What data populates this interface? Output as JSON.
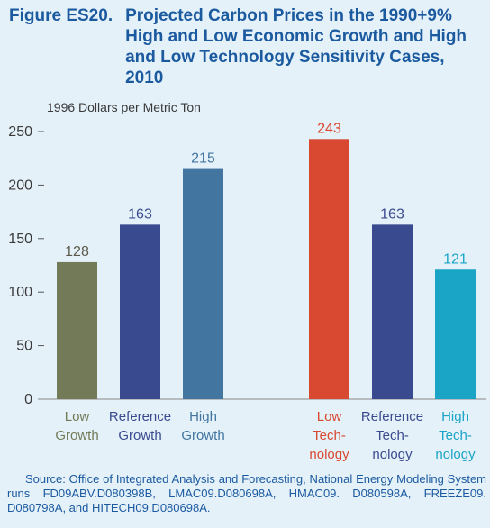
{
  "figure": {
    "label": "Figure ES20.",
    "title": "Projected Carbon Prices in the 1990+9% High and Low Economic Growth and High and Low Technology Sensitivity Cases, 2010"
  },
  "source": "Source: Office of Integrated Analysis and Forecasting, National Energy Modeling System runs FD09ABV.D080398B, LMAC09.D080698A, HMAC09. D080598A, FREEZE09. D080798A, and HITECH09.D080698A.",
  "chart_data": {
    "type": "bar",
    "ylabel": "1996 Dollars per Metric Ton",
    "ylim": [
      0,
      250
    ],
    "yticks": [
      0,
      50,
      100,
      150,
      200,
      250
    ],
    "grid": false,
    "groups": [
      {
        "bars": [
          {
            "label_lines": [
              "Low",
              "Growth"
            ],
            "value": 128,
            "color": "#737a57",
            "label_color": "#737a57",
            "value_color": "#5a5a4a"
          },
          {
            "label_lines": [
              "Reference",
              "Growth"
            ],
            "value": 163,
            "color": "#3a4a8e",
            "label_color": "#3a4a8e",
            "value_color": "#3a4a8e"
          },
          {
            "label_lines": [
              "High",
              "Growth"
            ],
            "value": 215,
            "color": "#4275a0",
            "label_color": "#4275a0",
            "value_color": "#4275a0"
          }
        ]
      },
      {
        "bars": [
          {
            "label_lines": [
              "Low",
              "Tech-",
              "nology"
            ],
            "value": 243,
            "color": "#d94830",
            "label_color": "#d94830",
            "value_color": "#d94830"
          },
          {
            "label_lines": [
              "Reference",
              "Tech-",
              "nology"
            ],
            "value": 163,
            "color": "#3a4a8e",
            "label_color": "#3a4a8e",
            "value_color": "#3a4a8e"
          },
          {
            "label_lines": [
              "High",
              "Tech-",
              "nology"
            ],
            "value": 121,
            "color": "#1aa4c6",
            "label_color": "#1aa4c6",
            "value_color": "#1aa4c6"
          }
        ]
      }
    ]
  }
}
